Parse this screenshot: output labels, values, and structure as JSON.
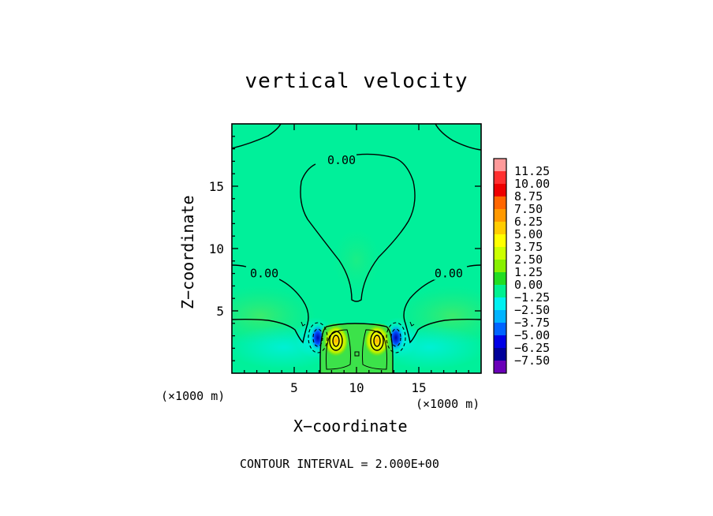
{
  "chart_data": {
    "type": "heatmap",
    "title": "vertical velocity",
    "xlabel": "X−coordinate",
    "ylabel": "Z−coordinate",
    "x_unit_label": "(×1000 m)",
    "x_ticks": [
      5,
      10,
      15
    ],
    "y_ticks": [
      5,
      10,
      15
    ],
    "xlim": [
      0,
      20
    ],
    "ylim": [
      0,
      20
    ],
    "contour_labels": [
      {
        "text": "0.00",
        "x": 8.8,
        "z": 17.1
      },
      {
        "text": "0.00",
        "x": 2.6,
        "z": 8.0
      },
      {
        "text": "0.00",
        "x": 17.4,
        "z": 8.0
      }
    ],
    "colorbar": {
      "levels": [
        "11.25",
        "10.00",
        "8.75",
        "7.50",
        "6.25",
        "5.00",
        "3.75",
        "2.50",
        "1.25",
        "0.00",
        "−1.25",
        "−2.50",
        "−3.75",
        "−5.00",
        "−6.25",
        "−7.50"
      ],
      "colors": [
        "#ff9a9a",
        "#ff3030",
        "#ee0000",
        "#ff6600",
        "#ff9900",
        "#ffcc00",
        "#ffff00",
        "#ccff00",
        "#88f000",
        "#22dd22",
        "#00f090",
        "#00f0f0",
        "#00b4ff",
        "#0064ff",
        "#0000e6",
        "#000099",
        "#6a00b8"
      ]
    },
    "footer": "CONTOUR INTERVAL = 2.000E+00"
  }
}
